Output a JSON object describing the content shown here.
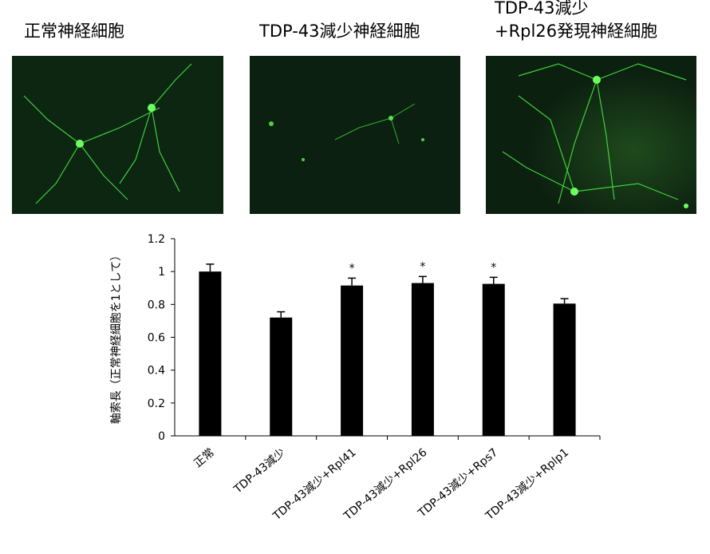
{
  "panels": [
    {
      "caption_lines": [
        "正常神経細胞"
      ]
    },
    {
      "caption_lines": [
        "TDP-43減少神経細胞"
      ]
    },
    {
      "caption_lines": [
        "TDP-43減少",
        "+Rpl26発現神経細胞"
      ]
    }
  ],
  "chart_data": {
    "type": "bar",
    "y_label": "軸索長（正常神経細胞を1として）",
    "categories": [
      "正常",
      "TDP-43減少",
      "TDP-43減少+Rpl41",
      "TDP-43減少+Rpl26",
      "TDP-43減少+Rps7",
      "TDP-43減少+Rplp1"
    ],
    "values": [
      1.0,
      0.72,
      0.915,
      0.93,
      0.925,
      0.805
    ],
    "errors": [
      0.045,
      0.035,
      0.045,
      0.04,
      0.04,
      0.03
    ],
    "significance_labels": [
      null,
      null,
      "*",
      "*",
      "*",
      null
    ],
    "color": "#000000",
    "ylim": [
      0,
      1.2
    ],
    "yticks": [
      0,
      0.2,
      0.4,
      0.6,
      0.8,
      1,
      1.2
    ],
    "grid": false
  }
}
